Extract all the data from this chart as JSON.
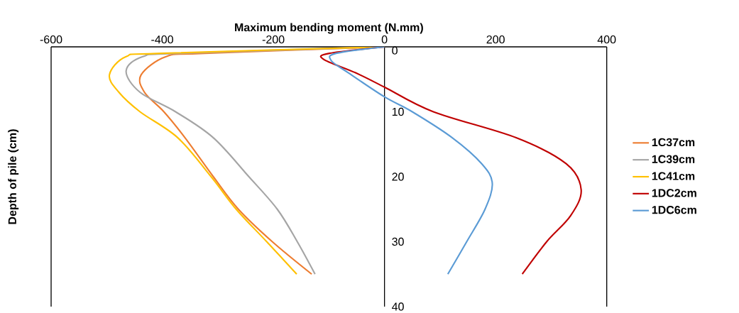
{
  "chart_data": {
    "type": "line",
    "xlabel": "Maximum bending moment (N.mm)",
    "ylabel": "Depth of pile (cm)",
    "xlim": [
      -600,
      400
    ],
    "xticks": [
      -600,
      -400,
      -200,
      0,
      200,
      400
    ],
    "ylim": [
      40,
      0
    ],
    "yticks": [
      0,
      10,
      20,
      30,
      40
    ],
    "grid": false,
    "legend": "right",
    "marker": "none",
    "line_style": "solid",
    "series": [
      {
        "name": "1C37cm",
        "color": "#ed7d31",
        "x": [
          0,
          -324,
          -393,
          -438,
          -432,
          -397,
          -359,
          -308,
          -263,
          -202,
          -131
        ],
        "values": [
          0,
          1,
          1.5,
          4.3,
          7,
          10,
          14,
          20,
          25,
          30,
          35
        ]
      },
      {
        "name": "1C39cm",
        "color": "#a5a5a5",
        "x": [
          0,
          -368,
          -435,
          -465,
          -440,
          -376,
          -308,
          -244,
          -193,
          -157,
          -125
        ],
        "values": [
          0,
          1,
          1.5,
          3.7,
          7,
          10,
          14,
          20,
          25,
          30,
          35
        ]
      },
      {
        "name": "1C41cm",
        "color": "#ffc000",
        "x": [
          0,
          -401,
          -465,
          -495,
          -478,
          -440,
          -372,
          -312,
          -267,
          -212,
          -158
        ],
        "values": [
          0,
          1,
          1.5,
          4.3,
          7,
          10,
          14,
          20,
          25,
          30,
          35
        ]
      },
      {
        "name": "1DC2cm",
        "color": "#c00000",
        "x": [
          0,
          -99,
          -110,
          -52,
          0,
          88,
          237,
          327,
          354,
          335,
          292,
          248
        ],
        "values": [
          0,
          1,
          1.9,
          4,
          6.2,
          10,
          14,
          18,
          22,
          26,
          30,
          35
        ]
      },
      {
        "name": "1DC6cm",
        "color": "#5b9bd5",
        "x": [
          0,
          -87,
          -96,
          -65,
          0,
          50,
          122,
          175,
          194,
          181,
          148,
          114
        ],
        "values": [
          0,
          1,
          2.1,
          4,
          7.7,
          10,
          14,
          18,
          21,
          25,
          30,
          35
        ]
      }
    ]
  }
}
